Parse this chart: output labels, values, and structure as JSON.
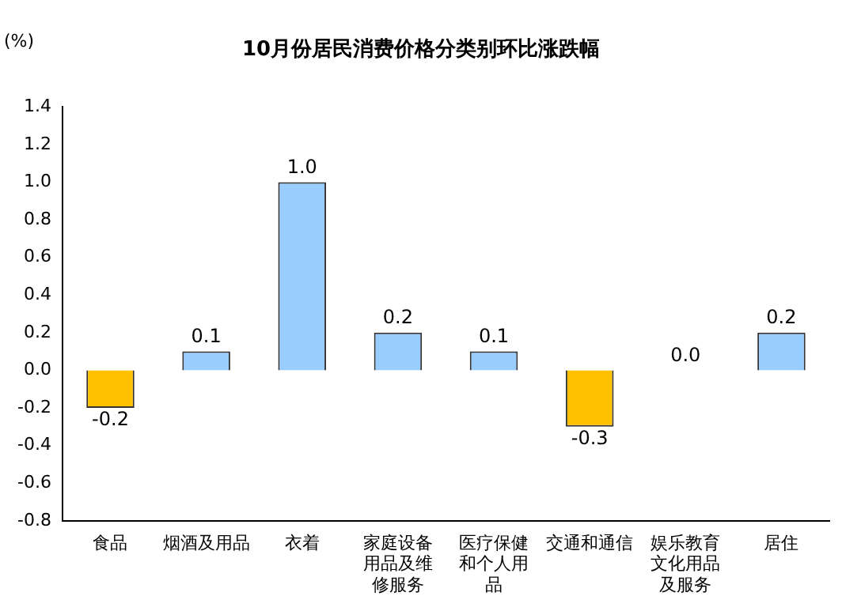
{
  "chart_data": {
    "type": "bar",
    "title": "10月份居民消费价格分类别环比涨跌幅",
    "ylabel": "(%)",
    "categories": [
      "食品",
      "烟酒及用品",
      "衣着",
      "家庭设备用品及维修服务",
      "医疗保健和个人用品",
      "交通和通信",
      "娱乐教育文化用品及服务",
      "居住"
    ],
    "values": [
      -0.2,
      0.1,
      1.0,
      0.2,
      0.1,
      -0.3,
      0.0,
      0.2
    ],
    "value_labels": [
      "-0.2",
      "0.1",
      "1.0",
      "0.2",
      "0.1",
      "-0.3",
      "0.0",
      "0.2"
    ],
    "colors": [
      "#ffc000",
      "#99ccff",
      "#99ccff",
      "#99ccff",
      "#99ccff",
      "#ffc000",
      "#99ccff",
      "#99ccff"
    ],
    "ylim": [
      -0.8,
      1.4
    ],
    "yticks": [
      -0.8,
      -0.6,
      -0.4,
      -0.2,
      {
        "value": 0,
        "label": "0.0"
      },
      0.2,
      0.4,
      0.6,
      0.8,
      {
        "value": 1,
        "label": "1.0"
      },
      1.2,
      1.4
    ],
    "grid": false
  }
}
